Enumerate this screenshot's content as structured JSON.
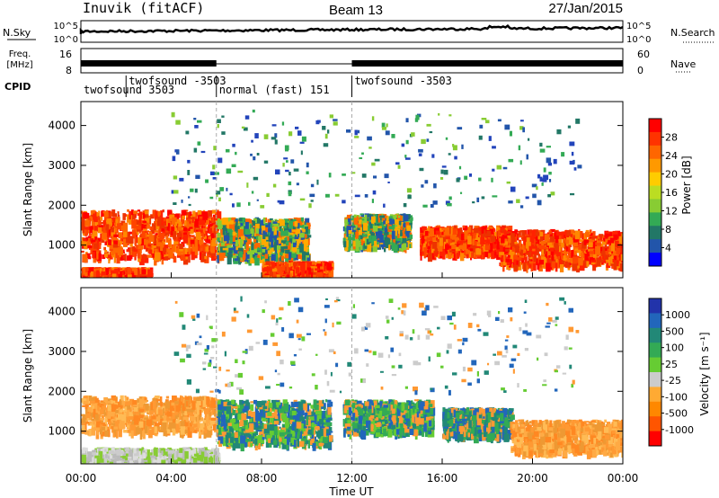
{
  "header": {
    "station": "Inuvik (fitACF)",
    "beam": "Beam 13",
    "date": "27/Jan/2015"
  },
  "sky_panel": {
    "left_label": "N.Sky",
    "right_label": "N.Search",
    "left_ticks": [
      "10^5",
      "10^0"
    ],
    "right_ticks": [
      "10^5",
      "10^0"
    ]
  },
  "freq_panel": {
    "left_label_line1": "Freq.",
    "left_label_line2": "[MHz]",
    "right_label": "Nave",
    "left_ticks": [
      "16",
      "8"
    ],
    "right_ticks": [
      "60",
      "0"
    ]
  },
  "cpid": {
    "label": "CPID",
    "programs": [
      {
        "name": "twofsound 3503",
        "start_hr": 0,
        "end_hr": 2,
        "row": 2
      },
      {
        "name": "twofsound -3503",
        "start_hr": 2,
        "end_hr": 6,
        "row": 1
      },
      {
        "name": "normal (fast) 151",
        "start_hr": 6,
        "end_hr": 12,
        "row": 2
      },
      {
        "name": "twofsound -3503",
        "start_hr": 12,
        "end_hr": 24,
        "row": 1
      }
    ]
  },
  "chart_data": [
    {
      "type": "heatmap",
      "name": "power",
      "ylabel": "Slant Range [km]",
      "xlabel": "",
      "xlim": [
        0,
        24
      ],
      "ylim": [
        180,
        4600
      ],
      "yticks": [
        "1000",
        "2000",
        "3000",
        "4000"
      ],
      "colorbar_label": "Power [dB]",
      "colorbar_ticks": [
        "28",
        "24",
        "20",
        "16",
        "12",
        "8",
        "4"
      ],
      "colorbar_colors": [
        "#ff0000",
        "#ff3300",
        "#ff6600",
        "#ff9900",
        "#ffcc00",
        "#bbdd22",
        "#88cc33",
        "#33aa55",
        "#227766",
        "#2255aa",
        "#0000ff"
      ],
      "echo_regions": [
        {
          "t0": 0.0,
          "t1": 6.0,
          "r0": 700,
          "r1": 1900,
          "level": "high"
        },
        {
          "t0": 0.0,
          "t1": 3.0,
          "r0": 200,
          "r1": 450,
          "level": "high"
        },
        {
          "t0": 6.0,
          "t1": 10.0,
          "r0": 700,
          "r1": 1700,
          "level": "mid"
        },
        {
          "t0": 8.0,
          "t1": 11.0,
          "r0": 200,
          "r1": 600,
          "level": "high"
        },
        {
          "t0": 11.6,
          "t1": 14.5,
          "r0": 1000,
          "r1": 1800,
          "level": "mid"
        },
        {
          "t0": 15.0,
          "t1": 19.0,
          "r0": 800,
          "r1": 1500,
          "level": "high"
        },
        {
          "t0": 18.5,
          "t1": 24.0,
          "r0": 500,
          "r1": 1400,
          "level": "high"
        },
        {
          "t0": 4.0,
          "t1": 22.0,
          "r0": 2000,
          "r1": 4400,
          "level": "low"
        }
      ]
    },
    {
      "type": "heatmap",
      "name": "velocity",
      "ylabel": "Slant Range [km]",
      "xlabel": "Time UT",
      "xlim": [
        0,
        24
      ],
      "ylim": [
        180,
        4600
      ],
      "xticks": [
        "00:00",
        "04:00",
        "08:00",
        "12:00",
        "16:00",
        "20:00",
        "00:00"
      ],
      "yticks": [
        "1000",
        "2000",
        "3000",
        "4000"
      ],
      "colorbar_label": "Velocity [m s⁻¹]",
      "colorbar_ticks": [
        "1000",
        "500",
        "100",
        "25",
        "-25",
        "-100",
        "-500",
        "-1000"
      ],
      "colorbar_colors": [
        "#2233aa",
        "#2266bb",
        "#228877",
        "#33aa55",
        "#66cc33",
        "#cccccc",
        "#ffaa33",
        "#ff8800",
        "#ff5500",
        "#ff0000"
      ],
      "echo_regions": [
        {
          "t0": 0.0,
          "t1": 6.0,
          "r0": 1000,
          "r1": 1900,
          "level": "away"
        },
        {
          "t0": 0.0,
          "t1": 6.0,
          "r0": 200,
          "r1": 600,
          "level": "slow"
        },
        {
          "t0": 6.0,
          "t1": 11.0,
          "r0": 700,
          "r1": 1800,
          "level": "toward"
        },
        {
          "t0": 11.6,
          "t1": 15.5,
          "r0": 1000,
          "r1": 1800,
          "level": "toward"
        },
        {
          "t0": 16.0,
          "t1": 19.0,
          "r0": 900,
          "r1": 1600,
          "level": "mixed"
        },
        {
          "t0": 19.0,
          "t1": 24.0,
          "r0": 500,
          "r1": 1300,
          "level": "away"
        },
        {
          "t0": 4.0,
          "t1": 22.0,
          "r0": 2000,
          "r1": 4400,
          "level": "scatter"
        }
      ]
    }
  ]
}
